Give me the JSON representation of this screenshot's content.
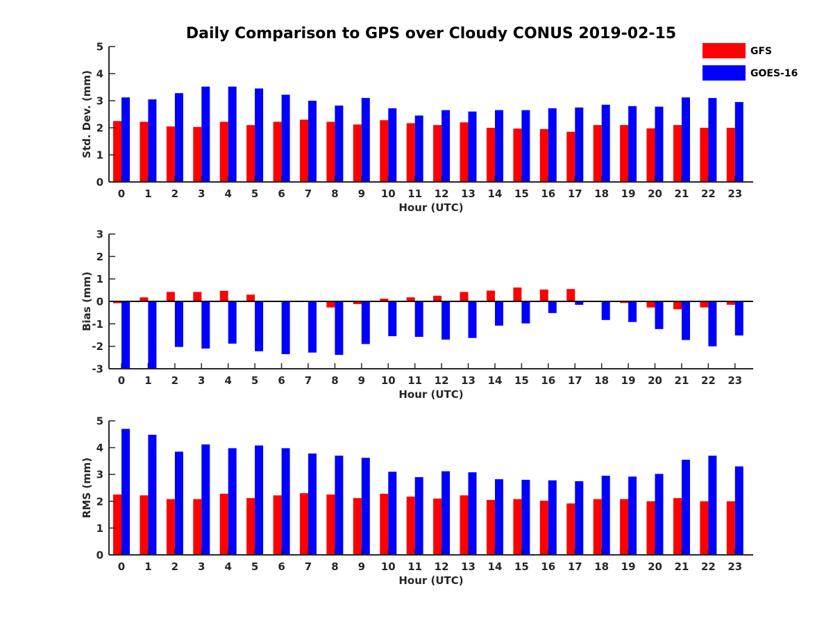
{
  "figure": {
    "title": "Daily Comparison to GPS over Cloudy CONUS 2019-02-15",
    "legend": {
      "placement": "top-right",
      "entries": [
        {
          "name": "GFS",
          "color": "#ff0000"
        },
        {
          "name": "GOES-16",
          "color": "#0000ff"
        }
      ]
    }
  },
  "chart_data": [
    {
      "type": "bar",
      "title": "Daily Comparison to GPS over Cloudy CONUS 2019-02-15",
      "xlabel": "Hour (UTC)",
      "ylabel": "Std. Dev. (mm)",
      "ylim": [
        0,
        5
      ],
      "yticks": [
        0,
        1,
        2,
        3,
        4,
        5
      ],
      "categories": [
        "0",
        "1",
        "2",
        "3",
        "4",
        "5",
        "6",
        "7",
        "8",
        "9",
        "10",
        "11",
        "12",
        "13",
        "14",
        "15",
        "16",
        "17",
        "18",
        "19",
        "20",
        "21",
        "22",
        "23"
      ],
      "series": [
        {
          "name": "GFS",
          "color": "#ff0000",
          "values": [
            2.25,
            2.22,
            2.05,
            2.03,
            2.22,
            2.1,
            2.22,
            2.3,
            2.22,
            2.12,
            2.28,
            2.17,
            2.1,
            2.2,
            2.0,
            1.97,
            1.95,
            1.85,
            2.1,
            2.1,
            1.98,
            2.1,
            2.0,
            2.0
          ]
        },
        {
          "name": "GOES-16",
          "color": "#0000ff",
          "values": [
            3.12,
            3.05,
            3.28,
            3.52,
            3.52,
            3.45,
            3.22,
            3.0,
            2.82,
            3.1,
            2.72,
            2.45,
            2.65,
            2.6,
            2.65,
            2.65,
            2.72,
            2.75,
            2.85,
            2.8,
            2.78,
            3.12,
            3.1,
            2.95
          ]
        }
      ]
    },
    {
      "type": "bar",
      "xlabel": "Hour (UTC)",
      "ylabel": "Bias (mm)",
      "ylim": [
        -3,
        3
      ],
      "yticks": [
        -3,
        -2,
        -1,
        0,
        1,
        2,
        3
      ],
      "categories": [
        "0",
        "1",
        "2",
        "3",
        "4",
        "5",
        "6",
        "7",
        "8",
        "9",
        "10",
        "11",
        "12",
        "13",
        "14",
        "15",
        "16",
        "17",
        "18",
        "19",
        "20",
        "21",
        "22",
        "23"
      ],
      "series": [
        {
          "name": "GFS",
          "color": "#ff0000",
          "values": [
            -0.08,
            0.18,
            0.42,
            0.42,
            0.47,
            0.3,
            -0.02,
            -0.02,
            -0.27,
            -0.12,
            0.12,
            0.18,
            0.25,
            0.42,
            0.48,
            0.62,
            0.53,
            0.55,
            -0.03,
            -0.07,
            -0.27,
            -0.35,
            -0.27,
            -0.15
          ]
        },
        {
          "name": "GOES-16",
          "color": "#0000ff",
          "values": [
            -3.0,
            -3.0,
            -2.03,
            -2.1,
            -1.88,
            -2.22,
            -2.35,
            -2.28,
            -2.38,
            -1.9,
            -1.55,
            -1.58,
            -1.7,
            -1.63,
            -1.08,
            -0.98,
            -0.52,
            -0.15,
            -0.83,
            -0.92,
            -1.23,
            -1.72,
            -2.0,
            -1.52
          ]
        }
      ]
    },
    {
      "type": "bar",
      "xlabel": "Hour (UTC)",
      "ylabel": "RMS (mm)",
      "ylim": [
        0,
        5
      ],
      "yticks": [
        0,
        1,
        2,
        3,
        4,
        5
      ],
      "categories": [
        "0",
        "1",
        "2",
        "3",
        "4",
        "5",
        "6",
        "7",
        "8",
        "9",
        "10",
        "11",
        "12",
        "13",
        "14",
        "15",
        "16",
        "17",
        "18",
        "19",
        "20",
        "21",
        "22",
        "23"
      ],
      "series": [
        {
          "name": "GFS",
          "color": "#ff0000",
          "values": [
            2.25,
            2.22,
            2.08,
            2.08,
            2.28,
            2.12,
            2.22,
            2.3,
            2.25,
            2.12,
            2.28,
            2.17,
            2.1,
            2.22,
            2.05,
            2.08,
            2.02,
            1.92,
            2.08,
            2.08,
            2.0,
            2.12,
            2.0,
            2.0
          ]
        },
        {
          "name": "GOES-16",
          "color": "#0000ff",
          "values": [
            4.7,
            4.48,
            3.85,
            4.12,
            3.98,
            4.08,
            3.98,
            3.78,
            3.7,
            3.62,
            3.1,
            2.9,
            3.12,
            3.08,
            2.82,
            2.8,
            2.78,
            2.75,
            2.95,
            2.92,
            3.02,
            3.55,
            3.7,
            3.3
          ]
        }
      ]
    }
  ]
}
